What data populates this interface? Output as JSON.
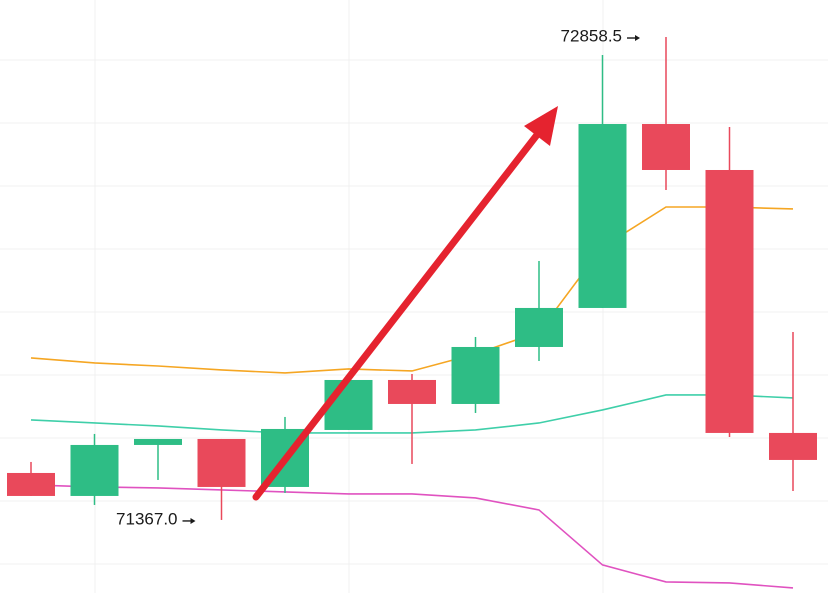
{
  "chart_data": {
    "type": "candlestick",
    "ylim": [
      71141.4,
      72972.8
    ],
    "up_color": "#2ebd85",
    "down_color": "#e9495b",
    "open": [
      71512.1,
      71441.1,
      71598.6,
      71617.1,
      71468.9,
      71644.9,
      71799.3,
      71725.2,
      71901.2,
      72021.7,
      72589.8,
      72447.8,
      71635.7
    ],
    "high": [
      71546.1,
      71632.6,
      71617.1,
      71617.1,
      71685.1,
      71799.3,
      71817.8,
      71932.1,
      72166.8,
      72802.9,
      72858.5,
      72580.6,
      71947.5
    ],
    "low": [
      71441.1,
      71413.3,
      71490.5,
      71367.0,
      71450.4,
      71644.9,
      71539.9,
      71697.4,
      71858.0,
      72021.7,
      72386.0,
      71623.3,
      71456.5
    ],
    "close": [
      71441.1,
      71598.6,
      71617.1,
      71468.9,
      71648.0,
      71799.3,
      71725.2,
      71901.2,
      72021.7,
      72589.8,
      72447.8,
      71635.7,
      71552.3
    ],
    "series": [
      {
        "color": "#f5a623",
        "values": [
          71867.3,
          71851.8,
          71842.5,
          71830.2,
          71820.9,
          71833.3,
          71827.1,
          71879.6,
          71947.5,
          72210.0,
          72333.5,
          72333.5,
          72327.4
        ]
      },
      {
        "color": "#3fcfa9",
        "values": [
          71675.8,
          71666.5,
          71657.3,
          71644.9,
          71635.7,
          71635.7,
          71635.7,
          71644.9,
          71666.5,
          71706.7,
          71753.0,
          71753.0,
          71743.7
        ]
      },
      {
        "color": "#e052c0",
        "values": [
          71475.1,
          71468.9,
          71465.8,
          71459.6,
          71453.5,
          71447.3,
          71447.3,
          71434.9,
          71397.9,
          71228.0,
          71175.5,
          71172.5,
          71157.0
        ]
      }
    ],
    "annotations": [
      {
        "value": 72858.5,
        "label": "72858.5"
      },
      {
        "value": 71367.0,
        "label": "71367.0"
      }
    ]
  }
}
